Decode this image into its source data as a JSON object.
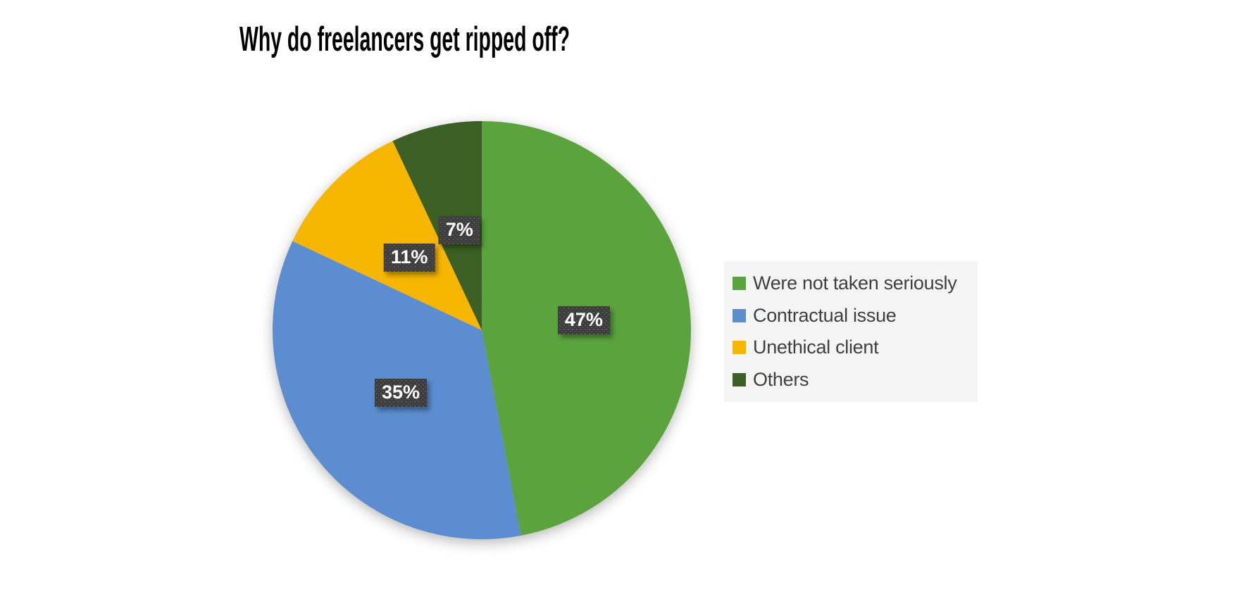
{
  "chart_data": {
    "type": "pie",
    "title": "Why do freelancers get ripped off?",
    "categories": [
      "Were not taken seriously",
      "Contractual issue",
      "Unethical client",
      "Others"
    ],
    "values": [
      47,
      35,
      11,
      7
    ],
    "data_labels": [
      "47%",
      "35%",
      "11%",
      "7%"
    ],
    "colors": [
      "#5BA33C",
      "#5B8DD0",
      "#F6B600",
      "#3B5F24"
    ],
    "start_angle_deg": 0,
    "direction": "clockwise",
    "legend_position": "right",
    "legend_background": "#F5F5F5",
    "legend_text_color": "#3F3F3F",
    "data_label_background": "#3C3C3C",
    "data_label_text_color": "#FFFFFF",
    "title_color": "#000000",
    "background_color": "#FFFFFF"
  }
}
